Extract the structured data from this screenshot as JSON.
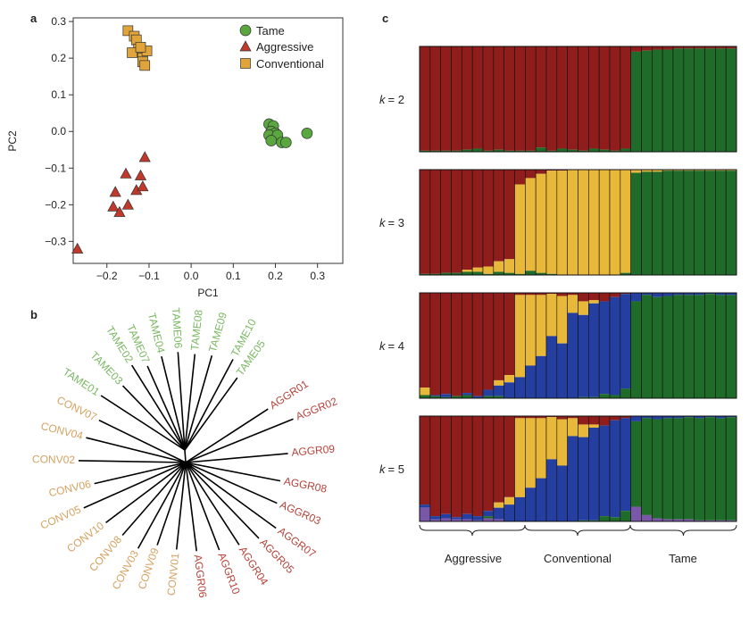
{
  "panels": {
    "a": "a",
    "b": "b",
    "c": "c"
  },
  "colors": {
    "tame": "#5aa63f",
    "aggressive": "#c0392b",
    "conventional": "#e0a43a",
    "tame_text": "#7ab863",
    "aggressive_text": "#b5443b",
    "conventional_text": "#d4a260",
    "k_red": "#8e1d1b",
    "k_green": "#1f6b2a",
    "k_yellow": "#e8b83a",
    "k_blue": "#243fa0",
    "k_purple": "#7b57a8"
  },
  "chart_data": [
    {
      "panel": "a",
      "type": "scatter",
      "xlabel": "PC1",
      "ylabel": "PC2",
      "xlim": [
        -0.28,
        0.36
      ],
      "ylim": [
        -0.36,
        0.31
      ],
      "xticks": [
        -0.2,
        -0.1,
        0.0,
        0.1,
        0.2,
        0.3
      ],
      "xtick_labels": [
        "−0.2",
        "−0.1",
        "0.0",
        "0.1",
        "0.2",
        "0.3"
      ],
      "yticks": [
        -0.3,
        -0.2,
        -0.1,
        0.0,
        0.1,
        0.2,
        0.3
      ],
      "ytick_labels": [
        "−0.3",
        "−0.2",
        "−0.1",
        "0.0",
        "0.1",
        "0.2",
        "0.3"
      ],
      "legend": [
        "Tame",
        "Aggressive",
        "Conventional"
      ],
      "series": [
        {
          "name": "Tame",
          "marker": "circle",
          "x": [
            0.185,
            0.195,
            0.19,
            0.2,
            0.185,
            0.205,
            0.215,
            0.19,
            0.225,
            0.275
          ],
          "y": [
            0.02,
            0.015,
            0.0,
            -0.005,
            -0.01,
            -0.01,
            -0.03,
            -0.025,
            -0.03,
            -0.005
          ]
        },
        {
          "name": "Aggressive",
          "marker": "triangle",
          "x": [
            -0.27,
            -0.185,
            -0.18,
            -0.17,
            -0.155,
            -0.15,
            -0.13,
            -0.12,
            -0.115,
            -0.11
          ],
          "y": [
            -0.32,
            -0.205,
            -0.165,
            -0.22,
            -0.115,
            -0.2,
            -0.16,
            -0.12,
            -0.15,
            -0.07
          ]
        },
        {
          "name": "Conventional",
          "marker": "square",
          "x": [
            -0.15,
            -0.135,
            -0.13,
            -0.125,
            -0.14,
            -0.115,
            -0.115,
            -0.11,
            -0.105,
            -0.12
          ],
          "y": [
            0.275,
            0.26,
            0.25,
            0.225,
            0.215,
            0.2,
            0.19,
            0.18,
            0.22,
            0.23
          ]
        }
      ]
    },
    {
      "panel": "b",
      "type": "unrooted-tree",
      "leaves": [
        {
          "label": "TAME01",
          "group": "tame",
          "angle": 147,
          "r": 112
        },
        {
          "label": "TAME03",
          "group": "tame",
          "angle": 134,
          "r": 100
        },
        {
          "label": "TAME02",
          "group": "tame",
          "angle": 122,
          "r": 112
        },
        {
          "label": "TAME07",
          "group": "tame",
          "angle": 114,
          "r": 103
        },
        {
          "label": "TAME04",
          "group": "tame",
          "angle": 104,
          "r": 108
        },
        {
          "label": "TAME06",
          "group": "tame",
          "angle": 94,
          "r": 110
        },
        {
          "label": "TAME08",
          "group": "tame",
          "angle": 84,
          "r": 108
        },
        {
          "label": "TAME09",
          "group": "tame",
          "angle": 74,
          "r": 110
        },
        {
          "label": "TAME10",
          "group": "tame",
          "angle": 62,
          "r": 115
        },
        {
          "label": "TAME05",
          "group": "tame",
          "angle": 54,
          "r": 100
        },
        {
          "label": "AGGR01",
          "group": "aggressive",
          "angle": 33,
          "r": 110
        },
        {
          "label": "AGGR02",
          "group": "aggressive",
          "angle": 22,
          "r": 130
        },
        {
          "label": "AGGR09",
          "group": "aggressive",
          "angle": 5,
          "r": 115
        },
        {
          "label": "AGGR08",
          "group": "aggressive",
          "angle": -11,
          "r": 108
        },
        {
          "label": "AGGR03",
          "group": "aggressive",
          "angle": -24,
          "r": 112
        },
        {
          "label": "AGGR07",
          "group": "aggressive",
          "angle": -36,
          "r": 125
        },
        {
          "label": "AGGR05",
          "group": "aggressive",
          "angle": -46,
          "r": 118
        },
        {
          "label": "AGGR04",
          "group": "aggressive",
          "angle": -57,
          "r": 110
        },
        {
          "label": "AGGR10",
          "group": "aggressive",
          "angle": -69,
          "r": 105
        },
        {
          "label": "AGGR06",
          "group": "aggressive",
          "angle": -83,
          "r": 100
        },
        {
          "label": "CONV01",
          "group": "conventional",
          "angle": -96,
          "r": 98
        },
        {
          "label": "CONV09",
          "group": "conventional",
          "angle": -109,
          "r": 98
        },
        {
          "label": "CONV03",
          "group": "conventional",
          "angle": -119,
          "r": 110
        },
        {
          "label": "CONV08",
          "group": "conventional",
          "angle": -131,
          "r": 108
        },
        {
          "label": "CONV10",
          "group": "conventional",
          "angle": -143,
          "r": 112
        },
        {
          "label": "CONV05",
          "group": "conventional",
          "angle": -156,
          "r": 125
        },
        {
          "label": "CONV06",
          "group": "conventional",
          "angle": -167,
          "r": 105
        },
        {
          "label": "CONV02",
          "group": "conventional",
          "angle": 179,
          "r": 120
        },
        {
          "label": "CONV04",
          "group": "conventional",
          "angle": 166,
          "r": 115
        },
        {
          "label": "CONV07",
          "group": "conventional",
          "angle": 154,
          "r": 108
        }
      ]
    },
    {
      "panel": "c",
      "type": "stacked-bar",
      "groups": [
        "Aggressive",
        "Conventional",
        "Tame"
      ],
      "individuals_per_group": 10,
      "panels": [
        {
          "k_prefix": "k",
          "k_value": "= 2",
          "order": [
            "k_red",
            "k_green"
          ],
          "bars": [
            [
              0.99,
              0.01
            ],
            [
              0.99,
              0.01
            ],
            [
              0.99,
              0.01
            ],
            [
              0.99,
              0.01
            ],
            [
              0.98,
              0.02
            ],
            [
              0.97,
              0.03
            ],
            [
              0.99,
              0.01
            ],
            [
              0.98,
              0.02
            ],
            [
              0.99,
              0.01
            ],
            [
              0.99,
              0.01
            ],
            [
              0.99,
              0.01
            ],
            [
              0.96,
              0.04
            ],
            [
              0.99,
              0.01
            ],
            [
              0.97,
              0.03
            ],
            [
              0.98,
              0.02
            ],
            [
              0.99,
              0.01
            ],
            [
              0.97,
              0.03
            ],
            [
              0.98,
              0.02
            ],
            [
              0.99,
              0.01
            ],
            [
              0.97,
              0.03
            ],
            [
              0.05,
              0.95
            ],
            [
              0.04,
              0.96
            ],
            [
              0.03,
              0.97
            ],
            [
              0.03,
              0.97
            ],
            [
              0.02,
              0.98
            ],
            [
              0.02,
              0.98
            ],
            [
              0.02,
              0.98
            ],
            [
              0.02,
              0.98
            ],
            [
              0.02,
              0.98
            ],
            [
              0.02,
              0.98
            ]
          ]
        },
        {
          "k_prefix": "k",
          "k_value": "= 3",
          "order": [
            "k_red",
            "k_yellow",
            "k_green"
          ],
          "bars": [
            [
              0.99,
              0.0,
              0.01
            ],
            [
              0.99,
              0.0,
              0.01
            ],
            [
              0.98,
              0.0,
              0.02
            ],
            [
              0.98,
              0.0,
              0.02
            ],
            [
              0.95,
              0.02,
              0.03
            ],
            [
              0.93,
              0.04,
              0.03
            ],
            [
              0.92,
              0.07,
              0.01
            ],
            [
              0.87,
              0.1,
              0.03
            ],
            [
              0.85,
              0.13,
              0.02
            ],
            [
              0.14,
              0.85,
              0.01
            ],
            [
              0.08,
              0.88,
              0.04
            ],
            [
              0.04,
              0.94,
              0.02
            ],
            [
              0.01,
              0.98,
              0.01
            ],
            [
              0.01,
              0.99,
              0.0
            ],
            [
              0.0,
              1.0,
              0.0
            ],
            [
              0.0,
              1.0,
              0.0
            ],
            [
              0.0,
              1.0,
              0.0
            ],
            [
              0.0,
              1.0,
              0.0
            ],
            [
              0.0,
              1.0,
              0.0
            ],
            [
              0.0,
              0.98,
              0.02
            ],
            [
              0.0,
              0.03,
              0.97
            ],
            [
              0.0,
              0.02,
              0.98
            ],
            [
              0.0,
              0.02,
              0.98
            ],
            [
              0.0,
              0.01,
              0.99
            ],
            [
              0.0,
              0.01,
              0.99
            ],
            [
              0.0,
              0.01,
              0.99
            ],
            [
              0.0,
              0.01,
              0.99
            ],
            [
              0.0,
              0.01,
              0.99
            ],
            [
              0.0,
              0.01,
              0.99
            ],
            [
              0.0,
              0.01,
              0.99
            ]
          ]
        },
        {
          "k_prefix": "k",
          "k_value": "= 4",
          "order": [
            "k_red",
            "k_yellow",
            "k_blue",
            "k_green"
          ],
          "bars": [
            [
              0.9,
              0.07,
              0.0,
              0.03
            ],
            [
              0.97,
              0.0,
              0.01,
              0.02
            ],
            [
              0.96,
              0.0,
              0.03,
              0.01
            ],
            [
              0.98,
              0.0,
              0.0,
              0.02
            ],
            [
              0.95,
              0.0,
              0.02,
              0.03
            ],
            [
              0.98,
              0.0,
              0.02,
              0.0
            ],
            [
              0.92,
              0.0,
              0.06,
              0.02
            ],
            [
              0.83,
              0.05,
              0.1,
              0.02
            ],
            [
              0.78,
              0.07,
              0.15,
              0.0
            ],
            [
              0.02,
              0.78,
              0.2,
              0.0
            ],
            [
              0.02,
              0.67,
              0.31,
              0.0
            ],
            [
              0.02,
              0.58,
              0.4,
              0.0
            ],
            [
              0.01,
              0.4,
              0.59,
              0.0
            ],
            [
              0.03,
              0.45,
              0.52,
              0.0
            ],
            [
              0.02,
              0.17,
              0.81,
              0.0
            ],
            [
              0.08,
              0.13,
              0.78,
              0.01
            ],
            [
              0.07,
              0.03,
              0.89,
              0.01
            ],
            [
              0.08,
              0.0,
              0.88,
              0.04
            ],
            [
              0.04,
              0.0,
              0.93,
              0.03
            ],
            [
              0.01,
              0.0,
              0.9,
              0.09
            ],
            [
              0.0,
              0.0,
              0.08,
              0.92
            ],
            [
              0.0,
              0.0,
              0.02,
              0.98
            ],
            [
              0.0,
              0.0,
              0.04,
              0.96
            ],
            [
              0.0,
              0.0,
              0.03,
              0.97
            ],
            [
              0.0,
              0.0,
              0.02,
              0.98
            ],
            [
              0.0,
              0.0,
              0.02,
              0.98
            ],
            [
              0.0,
              0.0,
              0.02,
              0.98
            ],
            [
              0.0,
              0.0,
              0.01,
              0.99
            ],
            [
              0.0,
              0.0,
              0.02,
              0.98
            ],
            [
              0.0,
              0.0,
              0.02,
              0.98
            ]
          ]
        },
        {
          "k_prefix": "k",
          "k_value": "= 5",
          "order": [
            "k_red",
            "k_yellow",
            "k_blue",
            "k_green",
            "k_purple"
          ],
          "bars": [
            [
              0.84,
              0.0,
              0.03,
              0.0,
              0.13
            ],
            [
              0.95,
              0.0,
              0.03,
              0.0,
              0.02
            ],
            [
              0.93,
              0.0,
              0.04,
              0.0,
              0.03
            ],
            [
              0.96,
              0.0,
              0.02,
              0.0,
              0.02
            ],
            [
              0.93,
              0.0,
              0.05,
              0.0,
              0.02
            ],
            [
              0.95,
              0.0,
              0.04,
              0.0,
              0.01
            ],
            [
              0.9,
              0.0,
              0.05,
              0.02,
              0.03
            ],
            [
              0.82,
              0.05,
              0.11,
              0.0,
              0.02
            ],
            [
              0.77,
              0.07,
              0.16,
              0.0,
              0.0
            ],
            [
              0.02,
              0.75,
              0.23,
              0.0,
              0.0
            ],
            [
              0.02,
              0.66,
              0.32,
              0.0,
              0.0
            ],
            [
              0.02,
              0.57,
              0.41,
              0.0,
              0.0
            ],
            [
              0.01,
              0.4,
              0.59,
              0.0,
              0.0
            ],
            [
              0.03,
              0.44,
              0.53,
              0.0,
              0.0
            ],
            [
              0.02,
              0.17,
              0.81,
              0.0,
              0.0
            ],
            [
              0.08,
              0.12,
              0.79,
              0.01,
              0.0
            ],
            [
              0.08,
              0.03,
              0.88,
              0.01,
              0.0
            ],
            [
              0.09,
              0.0,
              0.86,
              0.05,
              0.0
            ],
            [
              0.04,
              0.0,
              0.92,
              0.04,
              0.0
            ],
            [
              0.02,
              0.0,
              0.88,
              0.1,
              0.0
            ],
            [
              0.0,
              0.0,
              0.05,
              0.81,
              0.14
            ],
            [
              0.0,
              0.0,
              0.02,
              0.92,
              0.06
            ],
            [
              0.0,
              0.0,
              0.03,
              0.94,
              0.03
            ],
            [
              0.0,
              0.0,
              0.02,
              0.96,
              0.02
            ],
            [
              0.0,
              0.0,
              0.02,
              0.96,
              0.02
            ],
            [
              0.0,
              0.0,
              0.01,
              0.97,
              0.02
            ],
            [
              0.0,
              0.0,
              0.02,
              0.97,
              0.01
            ],
            [
              0.0,
              0.0,
              0.01,
              0.98,
              0.01
            ],
            [
              0.0,
              0.0,
              0.02,
              0.97,
              0.01
            ],
            [
              0.0,
              0.0,
              0.01,
              0.98,
              0.01
            ]
          ]
        }
      ]
    }
  ]
}
